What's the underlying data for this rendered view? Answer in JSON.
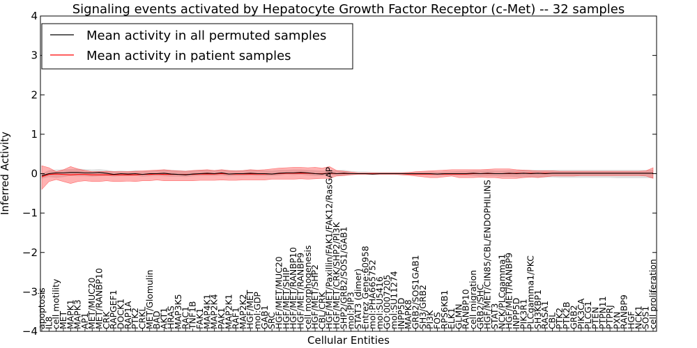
{
  "chart_data": {
    "type": "line",
    "title": "Signaling events activated by Hepatocyte Growth Factor Receptor (c-Met) -- 32 samples",
    "xlabel": "Cellular Entities",
    "ylabel": "Inferred Activity",
    "ylim": [
      -4,
      4
    ],
    "yticks": [
      -4,
      -3,
      -2,
      -1,
      0,
      1,
      2,
      3,
      4
    ],
    "grid": false,
    "legend_position": "top-left",
    "categories": [
      "apoptosis",
      "IL8",
      "cell motility",
      "MET",
      "MAPK1",
      "MAPK3",
      "AP1",
      "MET/MUC20",
      "MET/RANBP10",
      "CRK",
      "RAPGEF1",
      "DOCK1",
      "RAP1A",
      "PTK2",
      "CRKL",
      "MET/Glomulin",
      "BAD",
      "AKT1",
      "HRAS",
      "MAP3K5",
      "RAC1",
      "TNF1B",
      "FAK1",
      "MAP4K1",
      "MAP2K4",
      "PAK1",
      "MAP2K1",
      "RAF1",
      "MAP2K2",
      "HGF/MET",
      "mol:GDP",
      "GAB1",
      "SRC",
      "HGF/MET/MUC20",
      "HGF/MET/SHIP",
      "HGF/MET/RANBP10",
      "HGF/MET/RANBP9",
      "cell morphogenesis",
      "HGF/MET/SHP2",
      "CBL/CRK",
      "HGF/MET/Paxillin/FAK1/FAK12/RasGAP",
      "HGF/MET/CRK/SHP2/PI3K",
      "SHP2/GRB2/SOS1/GAB1",
      "mol:PIP3",
      "STAT3 (dimer)",
      "Entrez Gene:60958",
      "mol:PHA665752",
      "mol:SU5416",
      "GO:0007205",
      "mol:SU11274",
      "INPP5D",
      "MAPK8",
      "GRB2/SOS1GAB1",
      "SH3/GRB2",
      "PI3K",
      "FOS",
      "RPS6KB1",
      "ELK1",
      "GLMN",
      "RANBP10",
      "cell migration",
      "GRB2/SHC",
      "HGF/MET/CIN85/CBL/ENDOPHILINS",
      "STAT3",
      "NCK/PLCgamma1",
      "HGF/MET/RANBP9",
      "INPP5D",
      "PIK3R1",
      "PLCgamma1/PKC",
      "SH3KBP1",
      "RASA1",
      "CBL",
      "PTK2",
      "PTK2B",
      "GRB2",
      "PIK3CA",
      "PLCG1",
      "PTEN",
      "PTPN11",
      "PTPRJ",
      "PXN",
      "RANBP9",
      "HGF",
      "NCK1",
      "SOS1",
      "cell proliferation"
    ],
    "series": [
      {
        "name": "Mean activity in all permuted samples",
        "color": "#000000",
        "values": [
          -0.05,
          0.0,
          0.02,
          0.02,
          0.03,
          0.03,
          0.02,
          0.02,
          0.03,
          0.01,
          -0.02,
          0.0,
          -0.01,
          0.0,
          -0.02,
          0.0,
          0.0,
          0.01,
          -0.01,
          -0.02,
          -0.03,
          -0.01,
          0.0,
          0.01,
          0.0,
          0.02,
          -0.01,
          0.0,
          0.0,
          0.01,
          0.0,
          0.0,
          -0.01,
          0.01,
          0.02,
          0.02,
          0.03,
          0.02,
          0.0,
          -0.01,
          0.02,
          0.0,
          0.01,
          0.0,
          0.0,
          0.0,
          -0.01,
          0.0,
          0.0,
          0.0,
          0.0,
          0.0,
          0.0,
          0.0,
          0.0,
          -0.01,
          0.0,
          0.0,
          0.0,
          0.0,
          0.01,
          0.0,
          0.01,
          0.0,
          0.0,
          0.01,
          0.0,
          0.01,
          0.0,
          0.01,
          0.0,
          0.01,
          0.01,
          0.01,
          0.01,
          0.01,
          0.01,
          0.01,
          0.01,
          0.01,
          0.01,
          0.01,
          0.01,
          0.01,
          0.01,
          0.01
        ],
        "band_low": [
          -0.12,
          -0.08,
          -0.1,
          -0.08,
          -0.05,
          -0.06,
          -0.06,
          -0.07,
          -0.06,
          -0.05,
          -0.07,
          -0.06,
          -0.06,
          -0.05,
          -0.07,
          -0.06,
          -0.05,
          -0.06,
          -0.07,
          -0.07,
          -0.08,
          -0.06,
          -0.05,
          -0.05,
          -0.05,
          -0.04,
          -0.06,
          -0.05,
          -0.05,
          -0.04,
          -0.05,
          -0.05,
          -0.05,
          -0.04,
          -0.02,
          -0.03,
          -0.02,
          -0.04,
          -0.05,
          -0.05,
          -0.03,
          -0.05,
          -0.04,
          -0.02,
          -0.02,
          -0.02,
          -0.02,
          -0.02,
          -0.02,
          -0.02,
          -0.02,
          -0.02,
          -0.03,
          -0.03,
          -0.03,
          -0.04,
          -0.04,
          -0.04,
          -0.04,
          -0.04,
          -0.05,
          -0.06,
          -0.06,
          -0.06,
          -0.07,
          -0.07,
          -0.08,
          -0.08,
          -0.08,
          -0.09,
          -0.09,
          -0.09,
          -0.1,
          -0.1,
          -0.1,
          -0.1,
          -0.1,
          -0.1,
          -0.1,
          -0.1,
          -0.11,
          -0.11,
          -0.11,
          -0.11,
          -0.11,
          -0.11
        ],
        "band_high": [
          0.0,
          0.08,
          0.1,
          0.1,
          0.11,
          0.12,
          0.11,
          0.1,
          0.11,
          0.09,
          0.06,
          0.07,
          0.06,
          0.08,
          0.06,
          0.07,
          0.08,
          0.1,
          0.09,
          0.08,
          0.07,
          0.08,
          0.09,
          0.09,
          0.08,
          0.1,
          0.08,
          0.08,
          0.08,
          0.1,
          0.08,
          0.08,
          0.07,
          0.09,
          0.09,
          0.1,
          0.1,
          0.09,
          0.08,
          0.07,
          0.09,
          0.08,
          0.09,
          0.06,
          0.05,
          0.05,
          0.04,
          0.04,
          0.04,
          0.04,
          0.04,
          0.04,
          0.04,
          0.04,
          0.05,
          0.04,
          0.05,
          0.05,
          0.06,
          0.06,
          0.07,
          0.07,
          0.08,
          0.07,
          0.07,
          0.08,
          0.08,
          0.09,
          0.09,
          0.09,
          0.09,
          0.09,
          0.09,
          0.09,
          0.09,
          0.09,
          0.09,
          0.09,
          0.09,
          0.09,
          0.09,
          0.09,
          0.09,
          0.09,
          0.09,
          0.09
        ]
      },
      {
        "name": "Mean activity in patient samples",
        "color": "#ff0000",
        "values": [
          -0.08,
          -0.02,
          -0.01,
          -0.02,
          -0.03,
          -0.02,
          -0.02,
          -0.03,
          -0.03,
          -0.03,
          -0.03,
          -0.03,
          -0.03,
          -0.03,
          -0.02,
          -0.02,
          -0.01,
          -0.02,
          -0.02,
          -0.02,
          -0.02,
          -0.02,
          -0.01,
          -0.01,
          -0.01,
          0.0,
          -0.01,
          -0.01,
          -0.01,
          -0.01,
          -0.01,
          -0.01,
          -0.01,
          0.0,
          0.01,
          0.01,
          0.01,
          0.01,
          0.0,
          0.0,
          0.01,
          0.0,
          0.0,
          0.0,
          0.0,
          0.0,
          0.0,
          0.0,
          0.0,
          0.0,
          0.0,
          -0.01,
          -0.01,
          -0.01,
          -0.01,
          -0.01,
          -0.01,
          -0.01,
          -0.01,
          -0.01,
          0.0,
          0.0,
          0.0,
          0.0,
          0.0,
          0.0,
          0.01,
          0.01,
          0.01,
          0.01,
          0.01,
          0.01,
          0.01,
          0.01,
          0.01,
          0.01,
          0.01,
          0.01,
          0.01,
          0.01,
          0.01,
          0.01,
          0.01,
          0.01,
          0.01,
          0.01
        ],
        "band_low": [
          -0.4,
          -0.2,
          -0.15,
          -0.2,
          -0.25,
          -0.2,
          -0.18,
          -0.2,
          -0.2,
          -0.18,
          -0.2,
          -0.2,
          -0.19,
          -0.2,
          -0.18,
          -0.18,
          -0.16,
          -0.18,
          -0.18,
          -0.18,
          -0.18,
          -0.18,
          -0.17,
          -0.17,
          -0.17,
          -0.16,
          -0.17,
          -0.17,
          -0.16,
          -0.16,
          -0.16,
          -0.16,
          -0.14,
          -0.14,
          -0.14,
          -0.14,
          -0.13,
          -0.14,
          -0.13,
          -0.12,
          -0.12,
          -0.06,
          -0.05,
          -0.03,
          -0.02,
          -0.02,
          -0.02,
          -0.02,
          -0.02,
          -0.02,
          -0.03,
          -0.04,
          -0.06,
          -0.08,
          -0.1,
          -0.1,
          -0.08,
          -0.06,
          -0.1,
          -0.1,
          -0.1,
          -0.09,
          -0.1,
          -0.1,
          -0.12,
          -0.12,
          -0.12,
          -0.1,
          -0.09,
          -0.1,
          -0.08,
          -0.06,
          -0.06,
          -0.06,
          -0.06,
          -0.05,
          -0.05,
          -0.05,
          -0.05,
          -0.05,
          -0.05,
          -0.05,
          -0.05,
          -0.05,
          -0.06,
          -0.12
        ],
        "band_high": [
          0.2,
          0.15,
          0.05,
          0.1,
          0.18,
          0.12,
          0.08,
          0.05,
          0.05,
          0.06,
          0.05,
          0.05,
          0.05,
          0.06,
          0.07,
          0.08,
          0.09,
          0.1,
          0.08,
          0.07,
          0.06,
          0.08,
          0.09,
          0.1,
          0.08,
          0.1,
          0.08,
          0.07,
          0.08,
          0.1,
          0.09,
          0.1,
          0.12,
          0.14,
          0.15,
          0.16,
          0.16,
          0.15,
          0.16,
          0.14,
          0.18,
          0.08,
          0.06,
          0.04,
          0.02,
          0.02,
          0.02,
          0.02,
          0.02,
          0.02,
          0.02,
          0.03,
          0.05,
          0.06,
          0.07,
          0.08,
          0.09,
          0.1,
          0.1,
          0.1,
          0.1,
          0.1,
          0.11,
          0.12,
          0.12,
          0.12,
          0.1,
          0.09,
          0.08,
          0.07,
          0.07,
          0.07,
          0.06,
          0.06,
          0.06,
          0.06,
          0.06,
          0.06,
          0.06,
          0.06,
          0.06,
          0.06,
          0.06,
          0.06,
          0.07,
          0.15
        ]
      }
    ]
  }
}
